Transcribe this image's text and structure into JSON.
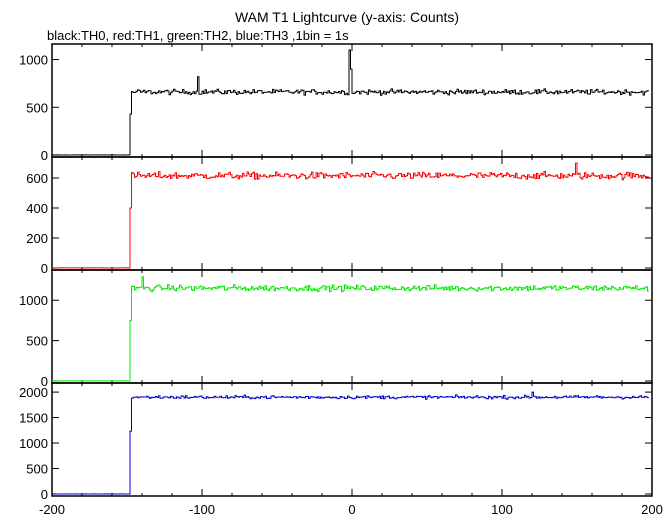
{
  "chart_data": {
    "type": "line",
    "title": "WAM T1 Lightcurve (y-axis: Counts)",
    "subtitle": "black:TH0, red:TH1, green:TH2, blue:TH3 ,1bin = 1s",
    "xlim": [
      -200,
      200
    ],
    "x_ticks": [
      "-200",
      "-100",
      "0",
      "100",
      "200"
    ],
    "trigger_x": -148,
    "panels": [
      {
        "name": "TH0",
        "color": "#000000",
        "ylim": [
          0,
          1100
        ],
        "y_ticks": [
          "0",
          "500",
          "1000"
        ],
        "pre_level": 0,
        "post_level": 660,
        "noise": 25,
        "spikes": [
          {
            "x": -103,
            "y": 820
          },
          {
            "x": -2,
            "y": 1100
          },
          {
            "x": -1,
            "y": 900
          }
        ]
      },
      {
        "name": "TH1",
        "color": "#ff0000",
        "ylim": [
          0,
          700
        ],
        "y_ticks": [
          "0",
          "200",
          "400",
          "600"
        ],
        "pre_level": 0,
        "post_level": 615,
        "noise": 22,
        "spikes": [
          {
            "x": 149,
            "y": 700
          }
        ]
      },
      {
        "name": "TH2",
        "color": "#00ee00",
        "ylim": [
          0,
          1300
        ],
        "y_ticks": [
          "0",
          "500",
          "1000"
        ],
        "pre_level": 0,
        "post_level": 1150,
        "noise": 35,
        "spikes": [
          {
            "x": -140,
            "y": 1290
          }
        ]
      },
      {
        "name": "TH3",
        "color": "#0000cc",
        "ylim": [
          0,
          2100
        ],
        "y_ticks": [
          "0",
          "500",
          "1000",
          "1500",
          "2000"
        ],
        "pre_level": 0,
        "post_level": 1900,
        "noise": 30,
        "spikes": [
          {
            "x": 120,
            "y": 2000
          }
        ]
      }
    ]
  }
}
